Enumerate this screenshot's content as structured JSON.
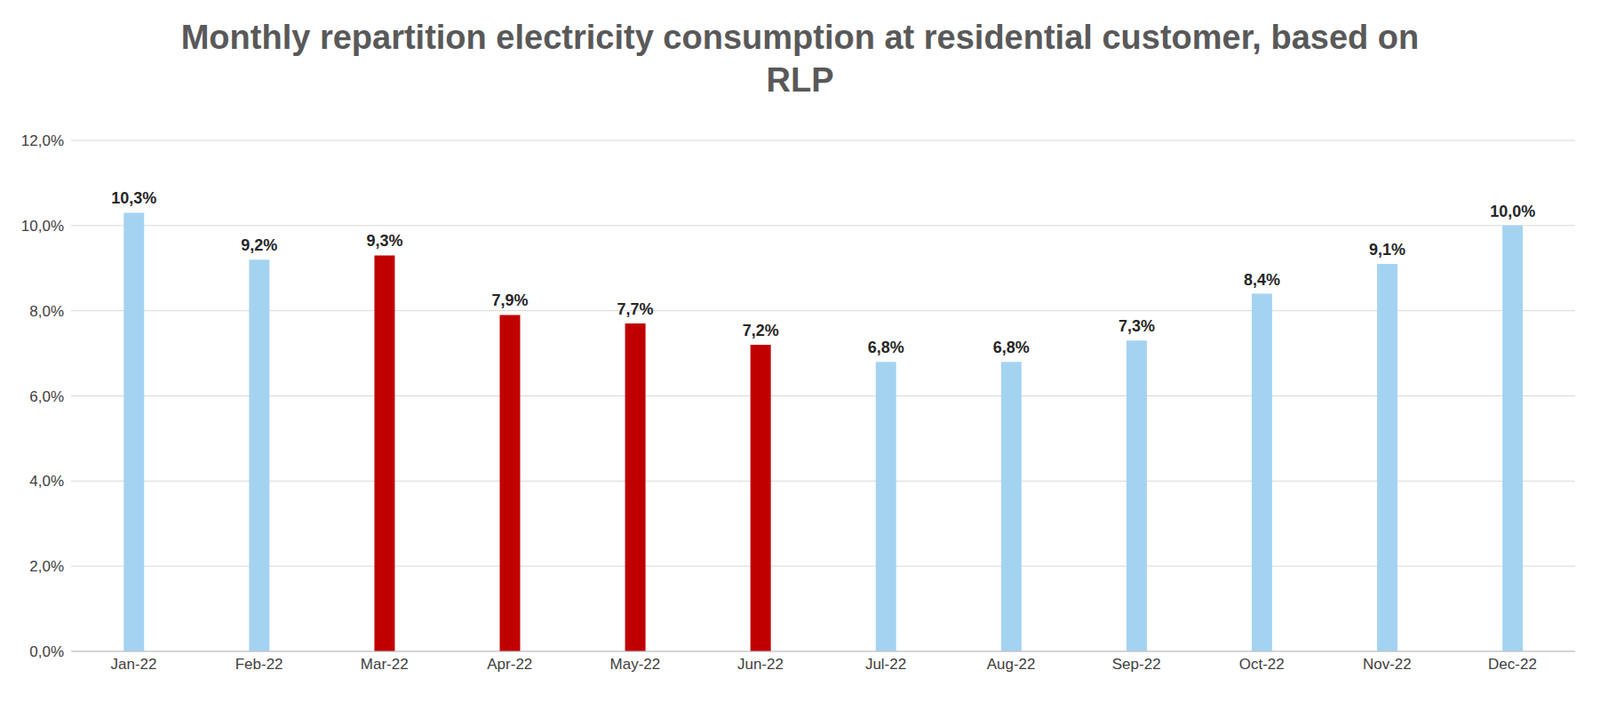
{
  "chart_data": {
    "type": "bar",
    "title": "Monthly repartition electricity consumption at residential customer, based on RLP",
    "categories": [
      "Jan-22",
      "Feb-22",
      "Mar-22",
      "Apr-22",
      "May-22",
      "Jun-22",
      "Jul-22",
      "Aug-22",
      "Sep-22",
      "Oct-22",
      "Nov-22",
      "Dec-22"
    ],
    "values": [
      10.3,
      9.2,
      9.3,
      7.9,
      7.7,
      7.2,
      6.8,
      6.8,
      7.3,
      8.4,
      9.1,
      10.0
    ],
    "value_labels": [
      "10,3%",
      "9,2%",
      "9,3%",
      "7,9%",
      "7,7%",
      "7,2%",
      "6,8%",
      "6,8%",
      "7,3%",
      "8,4%",
      "9,1%",
      "10,0%"
    ],
    "colors": [
      "#a4d3f2",
      "#a4d3f2",
      "#c00000",
      "#c00000",
      "#c00000",
      "#c00000",
      "#a4d3f2",
      "#a4d3f2",
      "#a4d3f2",
      "#a4d3f2",
      "#a4d3f2",
      "#a4d3f2"
    ],
    "ylim": [
      0,
      12
    ],
    "yticks": [
      {
        "value": 0,
        "label": "0,0%"
      },
      {
        "value": 2,
        "label": "2,0%"
      },
      {
        "value": 4,
        "label": "4,0%"
      },
      {
        "value": 6,
        "label": "6,0%"
      },
      {
        "value": 8,
        "label": "8,0%"
      },
      {
        "value": 10,
        "label": "10,0%"
      },
      {
        "value": 12,
        "label": "12,0%"
      }
    ],
    "grid": true,
    "data_labels": true
  }
}
